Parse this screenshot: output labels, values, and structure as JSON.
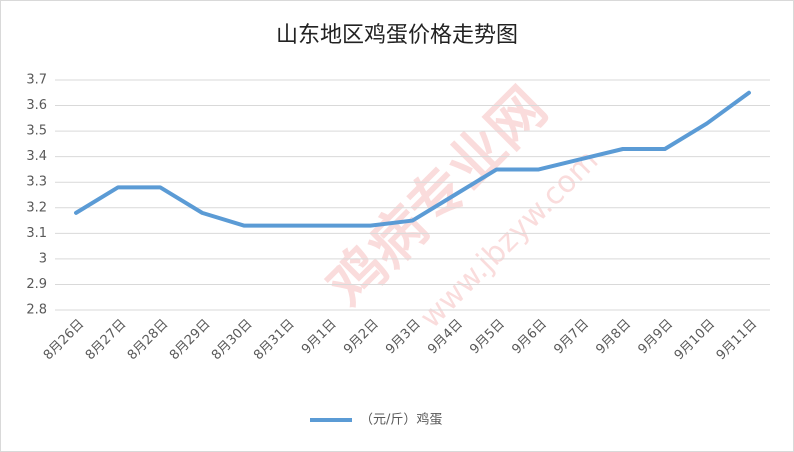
{
  "chart_data": {
    "type": "line",
    "title": "山东地区鸡蛋价格走势图",
    "categories": [
      "8月26日",
      "8月27日",
      "8月28日",
      "8月29日",
      "8月30日",
      "8月31日",
      "9月1日",
      "9月2日",
      "9月3日",
      "9月4日",
      "9月5日",
      "9月6日",
      "9月7日",
      "9月8日",
      "9月9日",
      "9月10日",
      "9月11日"
    ],
    "series": [
      {
        "name": "（元/斤）鸡蛋",
        "color": "#5b9bd5",
        "values": [
          3.18,
          3.28,
          3.28,
          3.18,
          3.13,
          3.13,
          3.13,
          3.13,
          3.15,
          3.25,
          3.35,
          3.35,
          3.39,
          3.43,
          3.43,
          3.53,
          3.65
        ]
      }
    ],
    "ylim": [
      2.8,
      3.7
    ],
    "yticks": [
      2.8,
      2.9,
      3,
      3.1,
      3.2,
      3.3,
      3.4,
      3.5,
      3.6,
      3.7
    ],
    "grid": true,
    "legend": "bottom",
    "watermark": [
      "鸡病专业网",
      "www.jbzyw.com"
    ]
  }
}
